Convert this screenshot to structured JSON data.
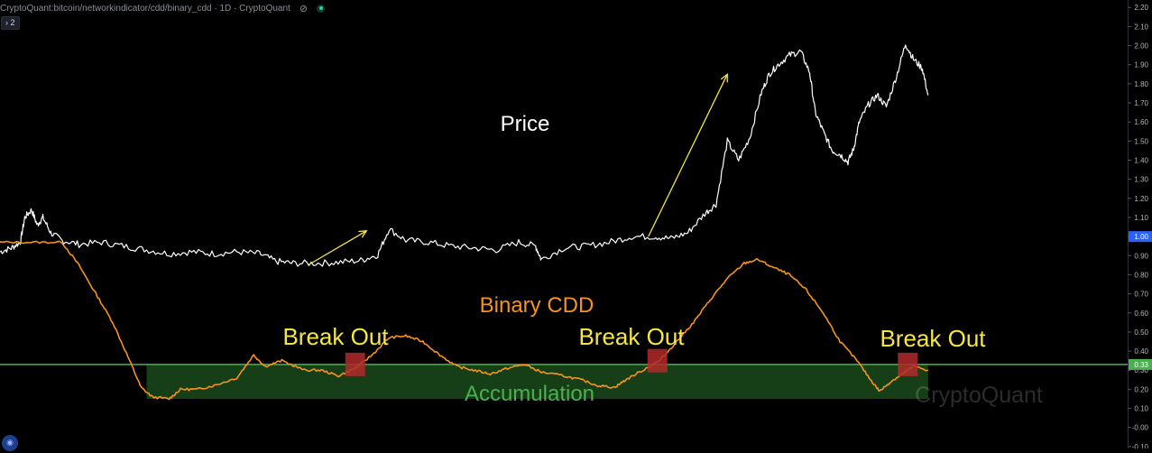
{
  "header": {
    "symbol": "CryptoQuant:bitcoin/networkindicator/cdd/binary_cdd · 1D · CryptoQuant",
    "eye_icon": "eye-off-icon",
    "status_dot_color": "#2bd39a"
  },
  "collapse_button": {
    "label": "2",
    "icon": "chevron-right-icon"
  },
  "watermark": "CryptoQuant",
  "colors": {
    "price": "#ffffff",
    "binary_cdd": "#f7931a",
    "threshold": "#4caf50",
    "accumulation_fill": "#1b4a1b",
    "breakout_box": "#b02a2a",
    "breakout_text": "#f5e642",
    "arrow": "#f5e642",
    "axis_text": "#b2b5be",
    "price_tag_bg": "#2962ff",
    "threshold_tag_bg": "#4caf50"
  },
  "chart_data": {
    "type": "line",
    "y_axis": {
      "ticks": [
        "2.20",
        "2.10",
        "2.00",
        "1.90",
        "1.80",
        "1.70",
        "1.60",
        "1.50",
        "1.40",
        "1.30",
        "1.20",
        "1.10",
        "1.00",
        "0.90",
        "0.80",
        "0.70",
        "0.60",
        "0.50",
        "0.40",
        "0.30",
        "0.20",
        "0.10",
        "-0.00",
        "-0.10"
      ],
      "ylim": [
        -0.11,
        2.22
      ],
      "current_value_tag": "1.00",
      "threshold_tag": "0.33"
    },
    "threshold": 0.33,
    "accumulation_zone": {
      "from": 0.15,
      "to": 0.33,
      "x_range": [
        0.13,
        0.823
      ]
    },
    "series": [
      {
        "key": "price",
        "points": [
          [
            0,
            0.92
          ],
          [
            0.01,
            0.94
          ],
          [
            0.018,
            0.97
          ],
          [
            0.022,
            1.1
          ],
          [
            0.028,
            1.14
          ],
          [
            0.033,
            1.06
          ],
          [
            0.038,
            1.1
          ],
          [
            0.045,
            1.02
          ],
          [
            0.055,
            0.98
          ],
          [
            0.07,
            0.96
          ],
          [
            0.09,
            0.97
          ],
          [
            0.11,
            0.95
          ],
          [
            0.13,
            0.93
          ],
          [
            0.15,
            0.91
          ],
          [
            0.17,
            0.92
          ],
          [
            0.19,
            0.91
          ],
          [
            0.21,
            0.92
          ],
          [
            0.23,
            0.91
          ],
          [
            0.245,
            0.87
          ],
          [
            0.26,
            0.86
          ],
          [
            0.28,
            0.86
          ],
          [
            0.3,
            0.865
          ],
          [
            0.32,
            0.875
          ],
          [
            0.335,
            0.905
          ],
          [
            0.345,
            1.04
          ],
          [
            0.36,
            0.98
          ],
          [
            0.38,
            0.97
          ],
          [
            0.4,
            0.95
          ],
          [
            0.42,
            0.94
          ],
          [
            0.44,
            0.93
          ],
          [
            0.46,
            0.97
          ],
          [
            0.475,
            0.95
          ],
          [
            0.48,
            0.88
          ],
          [
            0.5,
            0.94
          ],
          [
            0.52,
            0.95
          ],
          [
            0.54,
            0.97
          ],
          [
            0.56,
            1.0
          ],
          [
            0.58,
            1.0
          ],
          [
            0.595,
            0.99
          ],
          [
            0.61,
            1.02
          ],
          [
            0.625,
            1.12
          ],
          [
            0.635,
            1.17
          ],
          [
            0.645,
            1.5
          ],
          [
            0.655,
            1.4
          ],
          [
            0.665,
            1.52
          ],
          [
            0.675,
            1.75
          ],
          [
            0.682,
            1.85
          ],
          [
            0.69,
            1.9
          ],
          [
            0.7,
            1.95
          ],
          [
            0.71,
            1.97
          ],
          [
            0.718,
            1.86
          ],
          [
            0.723,
            1.65
          ],
          [
            0.73,
            1.55
          ],
          [
            0.738,
            1.45
          ],
          [
            0.745,
            1.43
          ],
          [
            0.752,
            1.39
          ],
          [
            0.757,
            1.46
          ],
          [
            0.762,
            1.6
          ],
          [
            0.77,
            1.69
          ],
          [
            0.778,
            1.74
          ],
          [
            0.786,
            1.68
          ],
          [
            0.795,
            1.84
          ],
          [
            0.803,
            2.01
          ],
          [
            0.81,
            1.93
          ],
          [
            0.818,
            1.88
          ],
          [
            0.823,
            1.74
          ]
        ]
      },
      {
        "key": "binary_cdd",
        "points": [
          [
            0,
            0.97
          ],
          [
            0.03,
            0.97
          ],
          [
            0.055,
            0.97
          ],
          [
            0.07,
            0.85
          ],
          [
            0.085,
            0.7
          ],
          [
            0.1,
            0.55
          ],
          [
            0.115,
            0.35
          ],
          [
            0.125,
            0.21
          ],
          [
            0.135,
            0.16
          ],
          [
            0.15,
            0.15
          ],
          [
            0.16,
            0.2
          ],
          [
            0.175,
            0.2
          ],
          [
            0.19,
            0.22
          ],
          [
            0.21,
            0.26
          ],
          [
            0.225,
            0.38
          ],
          [
            0.235,
            0.32
          ],
          [
            0.25,
            0.35
          ],
          [
            0.27,
            0.3
          ],
          [
            0.285,
            0.3
          ],
          [
            0.3,
            0.27
          ],
          [
            0.315,
            0.31
          ],
          [
            0.33,
            0.38
          ],
          [
            0.345,
            0.47
          ],
          [
            0.36,
            0.48
          ],
          [
            0.375,
            0.45
          ],
          [
            0.39,
            0.38
          ],
          [
            0.405,
            0.32
          ],
          [
            0.42,
            0.3
          ],
          [
            0.435,
            0.28
          ],
          [
            0.45,
            0.31
          ],
          [
            0.465,
            0.33
          ],
          [
            0.48,
            0.29
          ],
          [
            0.5,
            0.27
          ],
          [
            0.515,
            0.25
          ],
          [
            0.53,
            0.22
          ],
          [
            0.545,
            0.21
          ],
          [
            0.555,
            0.25
          ],
          [
            0.57,
            0.3
          ],
          [
            0.585,
            0.35
          ],
          [
            0.6,
            0.45
          ],
          [
            0.615,
            0.55
          ],
          [
            0.63,
            0.67
          ],
          [
            0.645,
            0.78
          ],
          [
            0.66,
            0.86
          ],
          [
            0.672,
            0.88
          ],
          [
            0.685,
            0.84
          ],
          [
            0.7,
            0.8
          ],
          [
            0.715,
            0.72
          ],
          [
            0.73,
            0.6
          ],
          [
            0.745,
            0.45
          ],
          [
            0.76,
            0.35
          ],
          [
            0.772,
            0.25
          ],
          [
            0.78,
            0.19
          ],
          [
            0.79,
            0.24
          ],
          [
            0.8,
            0.28
          ],
          [
            0.81,
            0.32
          ],
          [
            0.823,
            0.3
          ]
        ]
      }
    ],
    "annotations": [
      {
        "key": "price_label",
        "text": "Price"
      },
      {
        "key": "cdd_label",
        "text": "Binary CDD"
      },
      {
        "key": "accum_label",
        "text": "Accumulation"
      },
      {
        "key": "breakout_1",
        "text": "Break Out",
        "at": [
          0.315,
          0.33
        ]
      },
      {
        "key": "breakout_2",
        "text": "Break Out",
        "at": [
          0.583,
          0.35
        ]
      },
      {
        "key": "breakout_3",
        "text": "Break Out",
        "at": [
          0.805,
          0.33
        ]
      }
    ],
    "arrows": [
      {
        "from": [
          0.273,
          0.85
        ],
        "to": [
          0.325,
          1.03
        ]
      },
      {
        "from": [
          0.575,
          1.0
        ],
        "to": [
          0.645,
          1.85
        ]
      }
    ]
  }
}
